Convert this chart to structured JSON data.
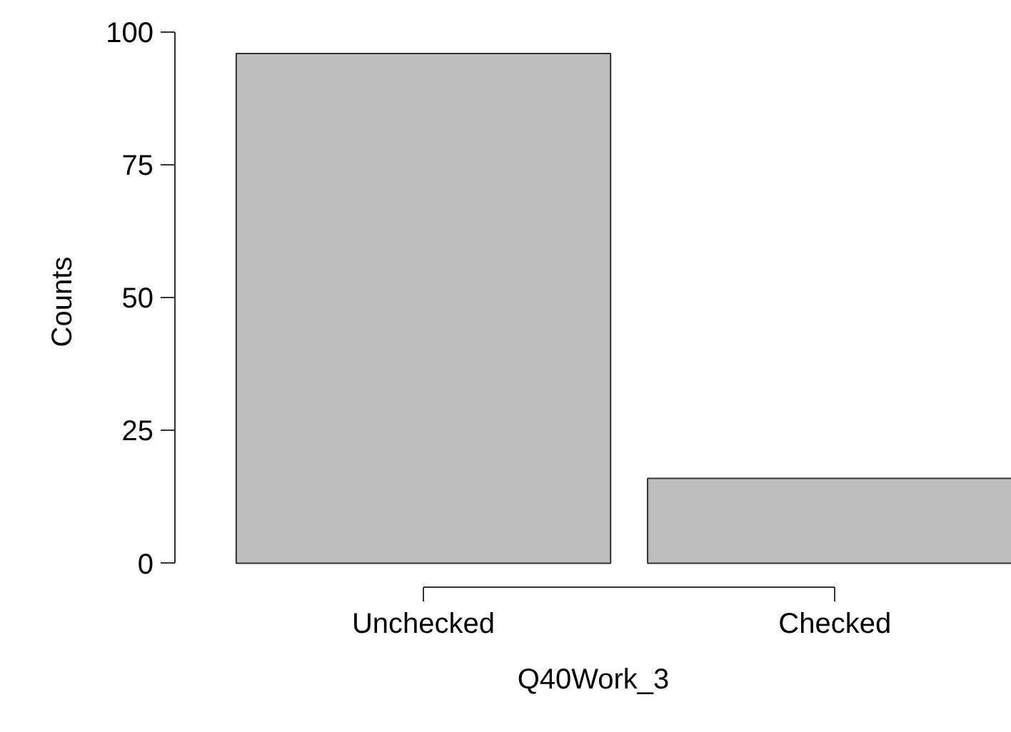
{
  "chart_data": {
    "type": "bar",
    "xlabel": "Q40Work_3",
    "ylabel": "Counts",
    "categories": [
      "Unchecked",
      "Checked"
    ],
    "values": [
      96,
      16
    ],
    "color": "#bebebe",
    "ylim": [
      0,
      100
    ],
    "yticks": [
      0,
      25,
      50,
      75,
      100
    ],
    "grid": false
  }
}
